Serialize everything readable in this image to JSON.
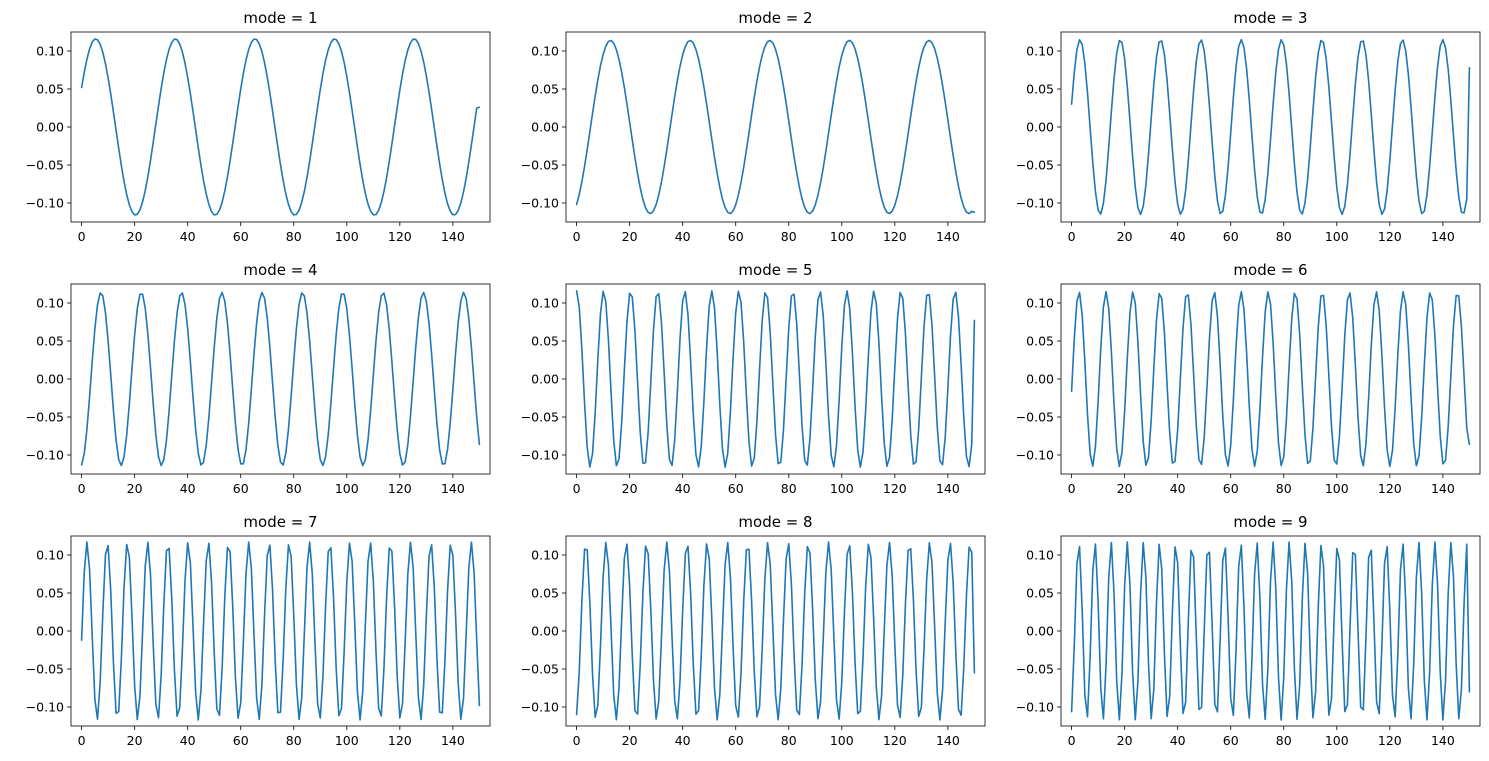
{
  "chart_data": [
    {
      "type": "line",
      "title": "mode = 1",
      "x_range": [
        0,
        150
      ],
      "xticks": [
        0,
        20,
        40,
        60,
        80,
        100,
        120,
        140
      ],
      "ylim": [
        -0.125,
        0.125
      ],
      "yticks": [
        0.1,
        0.05,
        0.0,
        -0.05,
        -0.1
      ],
      "ytick_labels": [
        "0.10",
        "0.05",
        "0.00",
        "−0.05",
        "−0.10"
      ],
      "series": [
        {
          "amplitude": 0.116,
          "cycles_per_sample": 0.0333,
          "phase_rad": 0.458,
          "y_start": 0.052,
          "y_end": 0.026
        }
      ]
    },
    {
      "type": "line",
      "title": "mode = 2",
      "x_range": [
        0,
        150
      ],
      "xticks": [
        0,
        20,
        40,
        60,
        80,
        100,
        120,
        140
      ],
      "ylim": [
        -0.125,
        0.125
      ],
      "yticks": [
        0.1,
        0.05,
        0.0,
        -0.05,
        -0.1
      ],
      "ytick_labels": [
        "0.10",
        "0.05",
        "0.00",
        "−0.05",
        "−0.10"
      ],
      "series": [
        {
          "amplitude": 0.114,
          "cycles_per_sample": 0.0333,
          "phase_rad": -1.1,
          "y_start": -0.102,
          "y_end": -0.112
        }
      ]
    },
    {
      "type": "line",
      "title": "mode = 3",
      "x_range": [
        0,
        150
      ],
      "xticks": [
        0,
        20,
        40,
        60,
        80,
        100,
        120,
        140
      ],
      "ylim": [
        -0.125,
        0.125
      ],
      "yticks": [
        0.1,
        0.05,
        0.0,
        -0.05,
        -0.1
      ],
      "ytick_labels": [
        "0.10",
        "0.05",
        "0.00",
        "−0.05",
        "−0.10"
      ],
      "series": [
        {
          "amplitude": 0.115,
          "cycles_per_sample": 0.0658,
          "phase_rad": 0.26,
          "y_start": 0.03,
          "y_end": 0.078
        }
      ]
    },
    {
      "type": "line",
      "title": "mode = 4",
      "x_range": [
        0,
        150
      ],
      "xticks": [
        0,
        20,
        40,
        60,
        80,
        100,
        120,
        140
      ],
      "ylim": [
        -0.125,
        0.125
      ],
      "yticks": [
        0.1,
        0.05,
        0.0,
        -0.05,
        -0.1
      ],
      "ytick_labels": [
        "0.10",
        "0.05",
        "0.00",
        "−0.05",
        "−0.10"
      ],
      "series": [
        {
          "amplitude": 0.114,
          "cycles_per_sample": 0.0658,
          "phase_rad": -1.45,
          "y_start": -0.113,
          "y_end": -0.086
        }
      ]
    },
    {
      "type": "line",
      "title": "mode = 5",
      "x_range": [
        0,
        150
      ],
      "xticks": [
        0,
        20,
        40,
        60,
        80,
        100,
        120,
        140
      ],
      "ylim": [
        -0.125,
        0.125
      ],
      "yticks": [
        0.1,
        0.05,
        0.0,
        -0.05,
        -0.1
      ],
      "ytick_labels": [
        "0.10",
        "0.05",
        "0.00",
        "−0.05",
        "−0.10"
      ],
      "series": [
        {
          "amplitude": 0.116,
          "cycles_per_sample": 0.0981,
          "phase_rad": 1.57,
          "y_start": 0.116,
          "y_end": 0.077
        }
      ]
    },
    {
      "type": "line",
      "title": "mode = 6",
      "x_range": [
        0,
        150
      ],
      "xticks": [
        0,
        20,
        40,
        60,
        80,
        100,
        120,
        140
      ],
      "ylim": [
        -0.125,
        0.125
      ],
      "yticks": [
        0.1,
        0.05,
        0.0,
        -0.05,
        -0.1
      ],
      "ytick_labels": [
        "0.10",
        "0.05",
        "0.00",
        "−0.05",
        "−0.10"
      ],
      "series": [
        {
          "amplitude": 0.115,
          "cycles_per_sample": 0.0981,
          "phase_rad": -0.14,
          "y_start": -0.016,
          "y_end": -0.086
        }
      ]
    },
    {
      "type": "line",
      "title": "mode = 7",
      "x_range": [
        0,
        150
      ],
      "xticks": [
        0,
        20,
        40,
        60,
        80,
        100,
        120,
        140
      ],
      "ylim": [
        -0.125,
        0.125
      ],
      "yticks": [
        0.1,
        0.05,
        0.0,
        -0.05,
        -0.1
      ],
      "ytick_labels": [
        "0.10",
        "0.05",
        "0.00",
        "−0.05",
        "−0.10"
      ],
      "series": [
        {
          "amplitude": 0.117,
          "cycles_per_sample": 0.1311,
          "phase_rad": -0.1,
          "y_start": -0.012,
          "y_end": -0.098
        }
      ]
    },
    {
      "type": "line",
      "title": "mode = 8",
      "x_range": [
        0,
        150
      ],
      "xticks": [
        0,
        20,
        40,
        60,
        80,
        100,
        120,
        140
      ],
      "ylim": [
        -0.125,
        0.125
      ],
      "yticks": [
        0.1,
        0.05,
        0.0,
        -0.05,
        -0.1
      ],
      "ytick_labels": [
        "0.10",
        "0.05",
        "0.00",
        "−0.05",
        "−0.10"
      ],
      "series": [
        {
          "amplitude": 0.117,
          "cycles_per_sample": 0.1311,
          "phase_rad": -1.3,
          "y_start": -0.11,
          "y_end": -0.055
        }
      ]
    },
    {
      "type": "line",
      "title": "mode = 9",
      "x_range": [
        0,
        150
      ],
      "xticks": [
        0,
        20,
        40,
        60,
        80,
        100,
        120,
        140
      ],
      "ylim": [
        -0.125,
        0.125
      ],
      "yticks": [
        0.1,
        0.05,
        0.0,
        -0.05,
        -0.1
      ],
      "ytick_labels": [
        "0.10",
        "0.05",
        "0.00",
        "−0.05",
        "−0.10"
      ],
      "series": [
        {
          "amplitude": 0.117,
          "cycles_per_sample": 0.1638,
          "phase_rad": -1.2,
          "y_start": -0.106,
          "y_end": -0.08
        }
      ]
    }
  ],
  "colors": {
    "line": "#1f77b4",
    "axes": "#000000",
    "background": "#ffffff"
  }
}
